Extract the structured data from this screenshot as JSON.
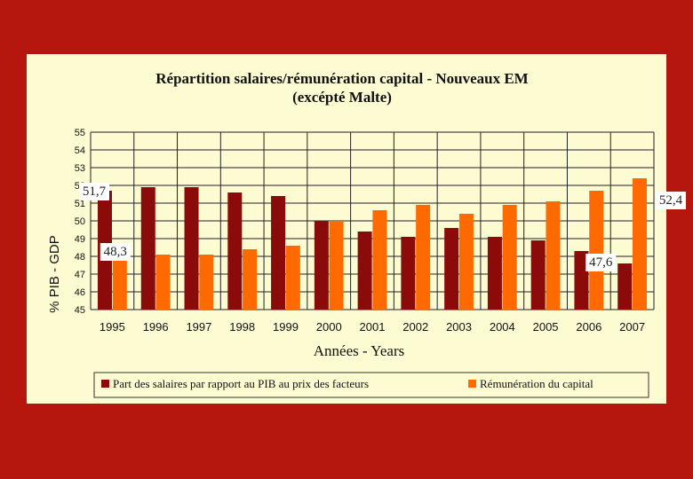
{
  "chart_data": {
    "type": "bar",
    "title_line1": "Répartition salaires/rémunération capital -  Nouveaux EM",
    "title_line2": "(excépté Malte)",
    "xlabel": "Années - Years",
    "ylabel": "% PIB - GDP",
    "ylim": [
      45,
      55
    ],
    "yticks": [
      45,
      46,
      47,
      48,
      49,
      50,
      51,
      52,
      53,
      54,
      55
    ],
    "grid": true,
    "legend_position": "bottom",
    "categories": [
      "1995",
      "1996",
      "1997",
      "1998",
      "1999",
      "2000",
      "2001",
      "2002",
      "2003",
      "2004",
      "2005",
      "2006",
      "2007"
    ],
    "series": [
      {
        "name": "Part des salaires par rapport au PIB au prix des facteurs",
        "color": "#8b0a0a",
        "values": [
          51.7,
          51.9,
          51.9,
          51.6,
          51.4,
          50.0,
          49.4,
          49.1,
          49.6,
          49.1,
          48.9,
          48.3,
          47.6
        ]
      },
      {
        "name": "Rémunération du capital",
        "color": "#ff6a00",
        "values": [
          48.3,
          48.1,
          48.1,
          48.4,
          48.6,
          50.0,
          50.6,
          50.9,
          50.4,
          50.9,
          51.1,
          51.7,
          52.4
        ]
      }
    ],
    "annotations": [
      {
        "text": "51,7",
        "series": 0,
        "category": 0
      },
      {
        "text": "48,3",
        "series": 1,
        "category": 0
      },
      {
        "text": "47,6",
        "series": 0,
        "category": 12
      },
      {
        "text": "52,4",
        "series": 1,
        "category": 12
      }
    ]
  }
}
